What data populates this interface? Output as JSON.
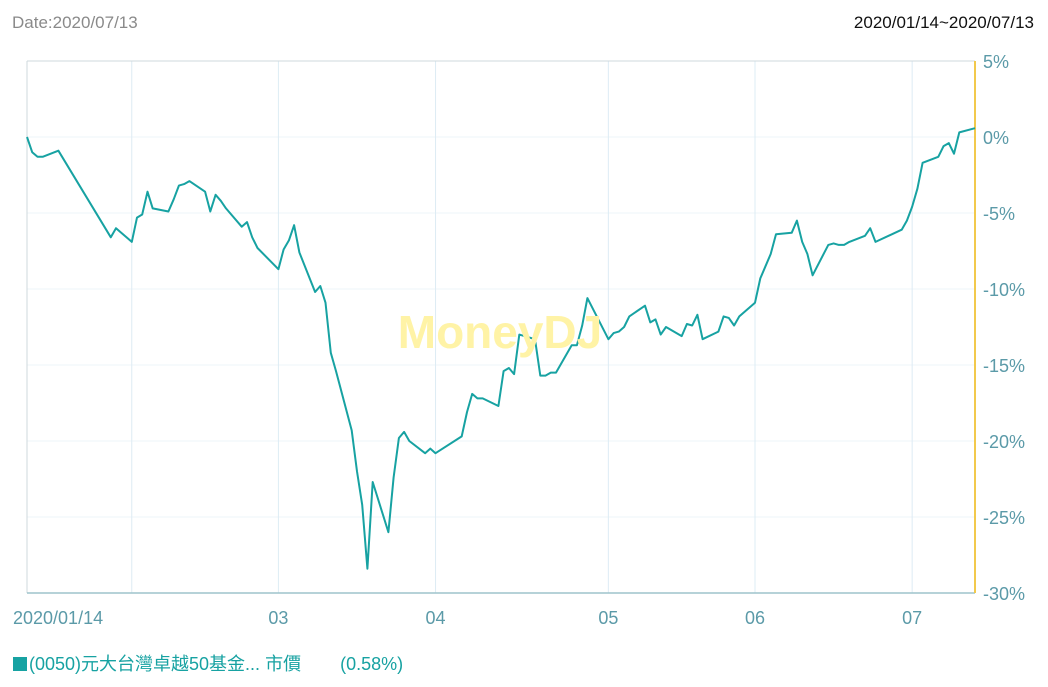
{
  "header": {
    "date_label": "Date:2020/07/13",
    "range_label": "2020/01/14~2020/07/13"
  },
  "watermark": "MoneyDJ",
  "legend": {
    "name": "(0050)元大台灣卓越50基金...",
    "metric": "市價",
    "value": "(0.58%)"
  },
  "colors": {
    "line": "#17a2a2",
    "axis_right": "#f2c94c",
    "tick_text": "#5b9aa8",
    "grid": "#ddecf4",
    "watermark": "#fff3a6"
  },
  "chart_data": {
    "type": "line",
    "ylim": [
      -30,
      5
    ],
    "yticks": [
      5,
      0,
      -5,
      -10,
      -15,
      -20,
      -25,
      -30
    ],
    "ytick_labels": [
      "5%",
      "0%",
      "-5%",
      "-10%",
      "-15%",
      "-20%",
      "-25%",
      "-30%"
    ],
    "xticks": [
      "2020-01-14",
      "2020-02-03",
      "2020-03-02",
      "2020-04-01",
      "2020-05-04",
      "2020-06-01",
      "2020-07-01"
    ],
    "xtick_labels": [
      "2020/01/14",
      "03",
      "04",
      "05",
      "06",
      "07"
    ],
    "xtick_label_dates": [
      "2020-01-14",
      "2020-03-02",
      "2020-04-01",
      "2020-05-04",
      "2020-06-01",
      "2020-07-01"
    ],
    "series": [
      {
        "name": "(0050)元大台灣卓越50基金... 市價",
        "points": [
          [
            "2020-01-14",
            0.0
          ],
          [
            "2020-01-15",
            -1.0
          ],
          [
            "2020-01-16",
            -1.3
          ],
          [
            "2020-01-17",
            -1.3
          ],
          [
            "2020-01-20",
            -0.9
          ],
          [
            "2020-01-30",
            -6.6
          ],
          [
            "2020-01-31",
            -6.0
          ],
          [
            "2020-02-03",
            -6.9
          ],
          [
            "2020-02-04",
            -5.3
          ],
          [
            "2020-02-05",
            -5.1
          ],
          [
            "2020-02-06",
            -3.6
          ],
          [
            "2020-02-07",
            -4.7
          ],
          [
            "2020-02-10",
            -4.9
          ],
          [
            "2020-02-11",
            -4.1
          ],
          [
            "2020-02-12",
            -3.2
          ],
          [
            "2020-02-13",
            -3.1
          ],
          [
            "2020-02-14",
            -2.9
          ],
          [
            "2020-02-17",
            -3.6
          ],
          [
            "2020-02-18",
            -4.9
          ],
          [
            "2020-02-19",
            -3.8
          ],
          [
            "2020-02-20",
            -4.2
          ],
          [
            "2020-02-21",
            -4.7
          ],
          [
            "2020-02-24",
            -5.9
          ],
          [
            "2020-02-25",
            -5.6
          ],
          [
            "2020-02-26",
            -6.6
          ],
          [
            "2020-02-27",
            -7.3
          ],
          [
            "2020-03-02",
            -8.7
          ],
          [
            "2020-03-03",
            -7.4
          ],
          [
            "2020-03-04",
            -6.8
          ],
          [
            "2020-03-05",
            -5.8
          ],
          [
            "2020-03-06",
            -7.6
          ],
          [
            "2020-03-09",
            -10.2
          ],
          [
            "2020-03-10",
            -9.8
          ],
          [
            "2020-03-11",
            -10.9
          ],
          [
            "2020-03-12",
            -14.2
          ],
          [
            "2020-03-13",
            -15.4
          ],
          [
            "2020-03-16",
            -19.3
          ],
          [
            "2020-03-17",
            -22.0
          ],
          [
            "2020-03-18",
            -24.2
          ],
          [
            "2020-03-19",
            -28.4
          ],
          [
            "2020-03-20",
            -22.7
          ],
          [
            "2020-03-23",
            -26.0
          ],
          [
            "2020-03-24",
            -22.4
          ],
          [
            "2020-03-25",
            -19.8
          ],
          [
            "2020-03-26",
            -19.4
          ],
          [
            "2020-03-27",
            -20.0
          ],
          [
            "2020-03-30",
            -20.8
          ],
          [
            "2020-03-31",
            -20.5
          ],
          [
            "2020-04-01",
            -20.8
          ],
          [
            "2020-04-06",
            -19.7
          ],
          [
            "2020-04-07",
            -18.1
          ],
          [
            "2020-04-08",
            -16.9
          ],
          [
            "2020-04-09",
            -17.2
          ],
          [
            "2020-04-10",
            -17.2
          ],
          [
            "2020-04-13",
            -17.7
          ],
          [
            "2020-04-14",
            -15.4
          ],
          [
            "2020-04-15",
            -15.2
          ],
          [
            "2020-04-16",
            -15.6
          ],
          [
            "2020-04-17",
            -13.0
          ],
          [
            "2020-04-20",
            -13.3
          ],
          [
            "2020-04-21",
            -15.7
          ],
          [
            "2020-04-22",
            -15.7
          ],
          [
            "2020-04-23",
            -15.5
          ],
          [
            "2020-04-24",
            -15.5
          ],
          [
            "2020-04-27",
            -13.7
          ],
          [
            "2020-04-28",
            -13.7
          ],
          [
            "2020-04-29",
            -12.4
          ],
          [
            "2020-04-30",
            -10.6
          ],
          [
            "2020-05-04",
            -13.3
          ],
          [
            "2020-05-05",
            -12.9
          ],
          [
            "2020-05-06",
            -12.8
          ],
          [
            "2020-05-07",
            -12.5
          ],
          [
            "2020-05-08",
            -11.8
          ],
          [
            "2020-05-11",
            -11.1
          ],
          [
            "2020-05-12",
            -12.2
          ],
          [
            "2020-05-13",
            -12.0
          ],
          [
            "2020-05-14",
            -13.0
          ],
          [
            "2020-05-15",
            -12.5
          ],
          [
            "2020-05-18",
            -13.1
          ],
          [
            "2020-05-19",
            -12.3
          ],
          [
            "2020-05-20",
            -12.4
          ],
          [
            "2020-05-21",
            -11.7
          ],
          [
            "2020-05-22",
            -13.3
          ],
          [
            "2020-05-25",
            -12.8
          ],
          [
            "2020-05-26",
            -11.8
          ],
          [
            "2020-05-27",
            -11.9
          ],
          [
            "2020-05-28",
            -12.4
          ],
          [
            "2020-05-29",
            -11.8
          ],
          [
            "2020-06-01",
            -10.9
          ],
          [
            "2020-06-02",
            -9.3
          ],
          [
            "2020-06-03",
            -8.5
          ],
          [
            "2020-06-04",
            -7.7
          ],
          [
            "2020-06-05",
            -6.4
          ],
          [
            "2020-06-08",
            -6.3
          ],
          [
            "2020-06-09",
            -5.5
          ],
          [
            "2020-06-10",
            -6.9
          ],
          [
            "2020-06-11",
            -7.7
          ],
          [
            "2020-06-12",
            -9.1
          ],
          [
            "2020-06-15",
            -7.1
          ],
          [
            "2020-06-16",
            -7.0
          ],
          [
            "2020-06-17",
            -7.1
          ],
          [
            "2020-06-18",
            -7.1
          ],
          [
            "2020-06-19",
            -6.9
          ],
          [
            "2020-06-22",
            -6.5
          ],
          [
            "2020-06-23",
            -6.0
          ],
          [
            "2020-06-24",
            -6.9
          ],
          [
            "2020-06-29",
            -6.1
          ],
          [
            "2020-06-30",
            -5.5
          ],
          [
            "2020-07-01",
            -4.6
          ],
          [
            "2020-07-02",
            -3.4
          ],
          [
            "2020-07-03",
            -1.7
          ],
          [
            "2020-07-06",
            -1.3
          ],
          [
            "2020-07-07",
            -0.6
          ],
          [
            "2020-07-08",
            -0.4
          ],
          [
            "2020-07-09",
            -1.1
          ],
          [
            "2020-07-10",
            0.3
          ],
          [
            "2020-07-13",
            0.58
          ]
        ]
      }
    ]
  }
}
